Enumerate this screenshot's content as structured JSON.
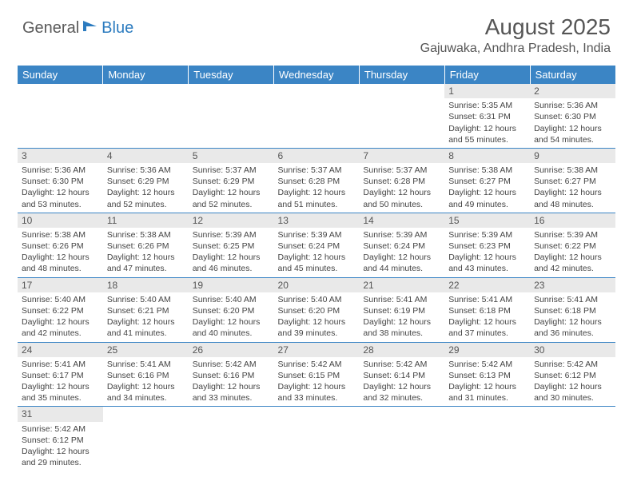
{
  "logo": {
    "general": "General",
    "blue": "Blue"
  },
  "title": "August 2025",
  "location": "Gajuwaka, Andhra Pradesh, India",
  "colors": {
    "header_bg": "#3b85c5",
    "header_text": "#ffffff",
    "daynum_bg": "#e9e9e9",
    "text": "#444444",
    "divider": "#3b85c5",
    "logo_gray": "#5a5a5a",
    "logo_blue": "#2b7bbf"
  },
  "daynames": [
    "Sunday",
    "Monday",
    "Tuesday",
    "Wednesday",
    "Thursday",
    "Friday",
    "Saturday"
  ],
  "weeks": [
    [
      null,
      null,
      null,
      null,
      null,
      {
        "n": "1",
        "sr": "5:35 AM",
        "ss": "6:31 PM",
        "dl": "12 hours and 55 minutes."
      },
      {
        "n": "2",
        "sr": "5:36 AM",
        "ss": "6:30 PM",
        "dl": "12 hours and 54 minutes."
      }
    ],
    [
      {
        "n": "3",
        "sr": "5:36 AM",
        "ss": "6:30 PM",
        "dl": "12 hours and 53 minutes."
      },
      {
        "n": "4",
        "sr": "5:36 AM",
        "ss": "6:29 PM",
        "dl": "12 hours and 52 minutes."
      },
      {
        "n": "5",
        "sr": "5:37 AM",
        "ss": "6:29 PM",
        "dl": "12 hours and 52 minutes."
      },
      {
        "n": "6",
        "sr": "5:37 AM",
        "ss": "6:28 PM",
        "dl": "12 hours and 51 minutes."
      },
      {
        "n": "7",
        "sr": "5:37 AM",
        "ss": "6:28 PM",
        "dl": "12 hours and 50 minutes."
      },
      {
        "n": "8",
        "sr": "5:38 AM",
        "ss": "6:27 PM",
        "dl": "12 hours and 49 minutes."
      },
      {
        "n": "9",
        "sr": "5:38 AM",
        "ss": "6:27 PM",
        "dl": "12 hours and 48 minutes."
      }
    ],
    [
      {
        "n": "10",
        "sr": "5:38 AM",
        "ss": "6:26 PM",
        "dl": "12 hours and 48 minutes."
      },
      {
        "n": "11",
        "sr": "5:38 AM",
        "ss": "6:26 PM",
        "dl": "12 hours and 47 minutes."
      },
      {
        "n": "12",
        "sr": "5:39 AM",
        "ss": "6:25 PM",
        "dl": "12 hours and 46 minutes."
      },
      {
        "n": "13",
        "sr": "5:39 AM",
        "ss": "6:24 PM",
        "dl": "12 hours and 45 minutes."
      },
      {
        "n": "14",
        "sr": "5:39 AM",
        "ss": "6:24 PM",
        "dl": "12 hours and 44 minutes."
      },
      {
        "n": "15",
        "sr": "5:39 AM",
        "ss": "6:23 PM",
        "dl": "12 hours and 43 minutes."
      },
      {
        "n": "16",
        "sr": "5:39 AM",
        "ss": "6:22 PM",
        "dl": "12 hours and 42 minutes."
      }
    ],
    [
      {
        "n": "17",
        "sr": "5:40 AM",
        "ss": "6:22 PM",
        "dl": "12 hours and 42 minutes."
      },
      {
        "n": "18",
        "sr": "5:40 AM",
        "ss": "6:21 PM",
        "dl": "12 hours and 41 minutes."
      },
      {
        "n": "19",
        "sr": "5:40 AM",
        "ss": "6:20 PM",
        "dl": "12 hours and 40 minutes."
      },
      {
        "n": "20",
        "sr": "5:40 AM",
        "ss": "6:20 PM",
        "dl": "12 hours and 39 minutes."
      },
      {
        "n": "21",
        "sr": "5:41 AM",
        "ss": "6:19 PM",
        "dl": "12 hours and 38 minutes."
      },
      {
        "n": "22",
        "sr": "5:41 AM",
        "ss": "6:18 PM",
        "dl": "12 hours and 37 minutes."
      },
      {
        "n": "23",
        "sr": "5:41 AM",
        "ss": "6:18 PM",
        "dl": "12 hours and 36 minutes."
      }
    ],
    [
      {
        "n": "24",
        "sr": "5:41 AM",
        "ss": "6:17 PM",
        "dl": "12 hours and 35 minutes."
      },
      {
        "n": "25",
        "sr": "5:41 AM",
        "ss": "6:16 PM",
        "dl": "12 hours and 34 minutes."
      },
      {
        "n": "26",
        "sr": "5:42 AM",
        "ss": "6:16 PM",
        "dl": "12 hours and 33 minutes."
      },
      {
        "n": "27",
        "sr": "5:42 AM",
        "ss": "6:15 PM",
        "dl": "12 hours and 33 minutes."
      },
      {
        "n": "28",
        "sr": "5:42 AM",
        "ss": "6:14 PM",
        "dl": "12 hours and 32 minutes."
      },
      {
        "n": "29",
        "sr": "5:42 AM",
        "ss": "6:13 PM",
        "dl": "12 hours and 31 minutes."
      },
      {
        "n": "30",
        "sr": "5:42 AM",
        "ss": "6:12 PM",
        "dl": "12 hours and 30 minutes."
      }
    ],
    [
      {
        "n": "31",
        "sr": "5:42 AM",
        "ss": "6:12 PM",
        "dl": "12 hours and 29 minutes."
      },
      null,
      null,
      null,
      null,
      null,
      null
    ]
  ],
  "labels": {
    "sunrise": "Sunrise:",
    "sunset": "Sunset:",
    "daylight": "Daylight:"
  }
}
